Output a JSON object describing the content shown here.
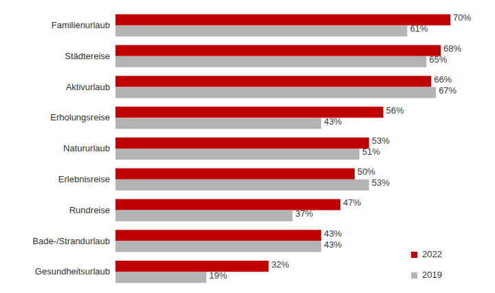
{
  "chart_data": {
    "type": "bar",
    "orientation": "horizontal",
    "categories": [
      "Familienurlaub",
      "Städtereise",
      "Aktivurlaub",
      "Erholungsreise",
      "Natururlaub",
      "Erlebnisreise",
      "Rundreise",
      "Bade-/Strandurlaub",
      "Gesundheitsurlaub"
    ],
    "series": [
      {
        "name": "2022",
        "color": "#c00000",
        "values": [
          70,
          68,
          66,
          56,
          53,
          50,
          47,
          43,
          32
        ],
        "value_labels": [
          "70%",
          "68%",
          "66%",
          "56%",
          "53%",
          "50%",
          "47%",
          "43%",
          "32%"
        ]
      },
      {
        "name": "2019",
        "color": "#b3b3b3",
        "values": [
          61,
          65,
          67,
          43,
          51,
          53,
          37,
          43,
          19
        ],
        "value_labels": [
          "61%",
          "65%",
          "67%",
          "43%",
          "51%",
          "53%",
          "37%",
          "43%",
          "19%"
        ]
      }
    ],
    "xlim": [
      0,
      70
    ],
    "grid": false,
    "data_labels": true,
    "tick_labels": "y",
    "legend": "lower right"
  }
}
